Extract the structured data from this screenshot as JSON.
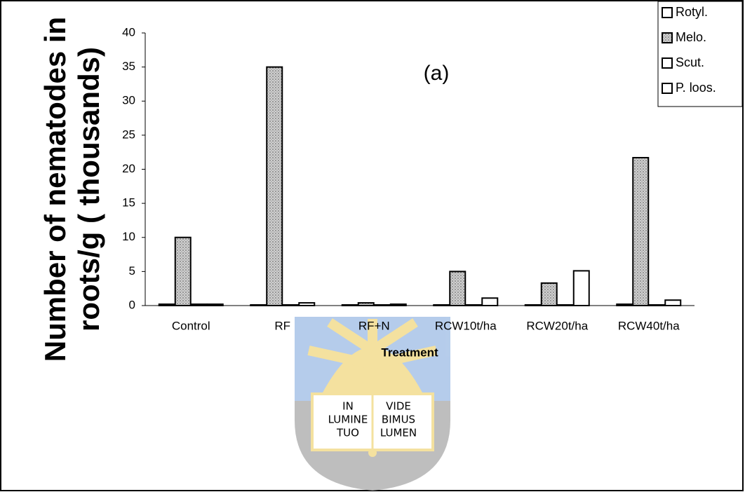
{
  "chart_data": {
    "type": "bar",
    "title": "(a)",
    "y_label": [
      "Number of nematodes in",
      "roots/g  ( thousands)"
    ],
    "x_label": "Treatment",
    "categories": [
      "Control",
      "RF",
      "RF+N",
      "RCW10t/ha",
      "RCW20t/ha",
      "RCW40t/ha"
    ],
    "series": [
      {
        "name": "Rotyl.",
        "color": "#ffffff",
        "values": [
          0.2,
          0.1,
          0.1,
          0.1,
          0.1,
          0.2
        ]
      },
      {
        "name": "Melo.",
        "color": "#b8b8b8",
        "values": [
          10,
          35,
          0.4,
          5,
          3.3,
          21.7
        ]
      },
      {
        "name": "Scut.",
        "color": "#ffffff",
        "values": [
          0.2,
          0.1,
          0.1,
          0.1,
          0.1,
          0.1
        ]
      },
      {
        "name": "P. loos.",
        "color": "#ffffff",
        "values": [
          0.2,
          0.4,
          0.2,
          1.1,
          5.1,
          0.8
        ]
      }
    ],
    "ylim": [
      0,
      40
    ],
    "yticks": [
      0,
      5,
      10,
      15,
      20,
      25,
      30,
      35,
      40
    ],
    "grid": false,
    "legend": "top-right"
  },
  "watermark": {
    "left": [
      "IN",
      "LUMINE",
      "TUO"
    ],
    "right": [
      "VIDE",
      "BIMUS",
      "LUMEN"
    ]
  }
}
